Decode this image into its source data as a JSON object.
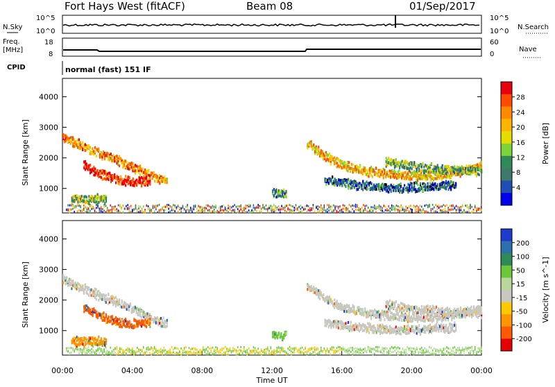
{
  "header": {
    "station": "Fort Hays West (fitACF)",
    "beam": "Beam 08",
    "date": "01/Sep/2017"
  },
  "strips": {
    "noise": {
      "left_label": "N.Sky",
      "right_label": "N.Search",
      "left_ticks": [
        "10^5",
        "10^0"
      ],
      "right_ticks": [
        "10^5",
        "10^0"
      ]
    },
    "freq": {
      "left_label_1": "Freq.",
      "left_label_2": "[MHz]",
      "right_label": "Nave",
      "left_ticks": [
        "18",
        "8"
      ],
      "right_ticks": [
        "60",
        "0"
      ]
    },
    "cpid": {
      "left_label": "CPID",
      "mode_text": "normal (fast) 151 IF"
    }
  },
  "chart_data": [
    {
      "type": "heatmap",
      "title": "",
      "ylabel": "Slant Range [km]",
      "xlabel": "Time UT",
      "x_ticks": [
        "00:00",
        "04:00",
        "08:00",
        "12:00",
        "16:00",
        "20:00",
        "00:00"
      ],
      "y_ticks": [
        1000,
        2000,
        3000,
        4000
      ],
      "ylim": [
        200,
        4600
      ],
      "xlim_hours": [
        0,
        24
      ],
      "colorbar": {
        "label": "Power [dB]",
        "ticks": [
          "28",
          "24",
          "20",
          "16",
          "12",
          "8",
          "4"
        ],
        "colors": [
          "#e8000b",
          "#ff4a00",
          "#ff8a00",
          "#ffb400",
          "#e6dc00",
          "#7cd33c",
          "#2e8b57",
          "#3d7a6a",
          "#1f4fb3",
          "#0000ee"
        ]
      },
      "bands": [
        {
          "name": "a",
          "points": [
            [
              0.0,
              2700
            ],
            [
              1.0,
              2450
            ],
            [
              2.0,
              2200
            ],
            [
              3.0,
              2000
            ],
            [
              4.0,
              1750
            ],
            [
              5.0,
              1450
            ],
            [
              6.0,
              1250
            ]
          ],
          "level": 0.72
        },
        {
          "name": "b",
          "points": [
            [
              1.2,
              1800
            ],
            [
              2.0,
              1550
            ],
            [
              3.0,
              1350
            ],
            [
              4.0,
              1250
            ],
            [
              5.0,
              1300
            ]
          ],
          "level": 0.92
        },
        {
          "name": "c",
          "points": [
            [
              0.5,
              700
            ],
            [
              1.5,
              680
            ],
            [
              2.5,
              700
            ]
          ],
          "level": 0.45
        },
        {
          "name": "d",
          "points": [
            [
              12.0,
              900
            ],
            [
              12.8,
              850
            ]
          ],
          "level": 0.3
        },
        {
          "name": "e",
          "points": [
            [
              14.0,
              2500
            ],
            [
              15.0,
              2100
            ],
            [
              16.0,
              1800
            ],
            [
              17.5,
              1600
            ],
            [
              19.0,
              1500
            ],
            [
              20.5,
              1450
            ],
            [
              22.0,
              1500
            ],
            [
              23.5,
              1700
            ],
            [
              24.0,
              1800
            ]
          ],
          "level": 0.65
        },
        {
          "name": "f",
          "points": [
            [
              15.0,
              1300
            ],
            [
              17.0,
              1150
            ],
            [
              19.0,
              1050
            ],
            [
              21.0,
              1100
            ],
            [
              22.5,
              1150
            ]
          ],
          "level": 0.2
        },
        {
          "name": "g",
          "points": [
            [
              18.5,
              1900
            ],
            [
              20.0,
              1750
            ],
            [
              22.0,
              1650
            ],
            [
              24.0,
              1600
            ]
          ],
          "level": 0.4
        }
      ]
    },
    {
      "type": "heatmap",
      "title": "",
      "ylabel": "Slant Range [km]",
      "xlabel": "Time UT",
      "x_ticks": [
        "00:00",
        "04:00",
        "08:00",
        "12:00",
        "16:00",
        "20:00",
        "00:00"
      ],
      "y_ticks": [
        1000,
        2000,
        3000,
        4000
      ],
      "ylim": [
        200,
        4600
      ],
      "xlim_hours": [
        0,
        24
      ],
      "colorbar": {
        "label": "Velocity [m s^-1]",
        "ticks": [
          "200",
          "100",
          "50",
          "15",
          "-15",
          "-50",
          "-100",
          "-200"
        ],
        "colors": [
          "#1e3cc8",
          "#2e6fb0",
          "#2e8b57",
          "#6cc83a",
          "#b8d79a",
          "#c8c8c0",
          "#ffc800",
          "#ff9600",
          "#ff5a00",
          "#e60000"
        ]
      },
      "bands": [
        {
          "name": "a",
          "points": [
            [
              0.0,
              2700
            ],
            [
              1.0,
              2450
            ],
            [
              2.0,
              2200
            ],
            [
              3.0,
              2000
            ],
            [
              4.0,
              1750
            ],
            [
              5.0,
              1450
            ],
            [
              6.0,
              1250
            ]
          ],
          "color": "#c8c8c0"
        },
        {
          "name": "b",
          "points": [
            [
              1.2,
              1800
            ],
            [
              2.0,
              1550
            ],
            [
              3.0,
              1350
            ],
            [
              4.0,
              1250
            ],
            [
              5.0,
              1300
            ]
          ],
          "color": "#ff5a00"
        },
        {
          "name": "c",
          "points": [
            [
              0.5,
              700
            ],
            [
              1.5,
              680
            ],
            [
              2.5,
              700
            ]
          ],
          "color": "#ff9600"
        },
        {
          "name": "d",
          "points": [
            [
              12.0,
              900
            ],
            [
              12.8,
              850
            ]
          ],
          "color": "#6cc83a"
        },
        {
          "name": "e",
          "points": [
            [
              14.0,
              2500
            ],
            [
              15.0,
              2100
            ],
            [
              16.0,
              1800
            ],
            [
              17.5,
              1600
            ],
            [
              19.0,
              1500
            ],
            [
              20.5,
              1450
            ],
            [
              22.0,
              1500
            ],
            [
              23.5,
              1700
            ],
            [
              24.0,
              1800
            ]
          ],
          "color": "#c8c8c0"
        },
        {
          "name": "f",
          "points": [
            [
              15.0,
              1300
            ],
            [
              17.0,
              1150
            ],
            [
              19.0,
              1050
            ],
            [
              21.0,
              1100
            ],
            [
              22.5,
              1150
            ]
          ],
          "color": "#c8c8c0"
        },
        {
          "name": "g",
          "points": [
            [
              18.5,
              1900
            ],
            [
              20.0,
              1750
            ],
            [
              22.0,
              1650
            ],
            [
              24.0,
              1600
            ]
          ],
          "color": "#c8c8c0"
        }
      ]
    }
  ],
  "xaxis_label": "Time UT"
}
